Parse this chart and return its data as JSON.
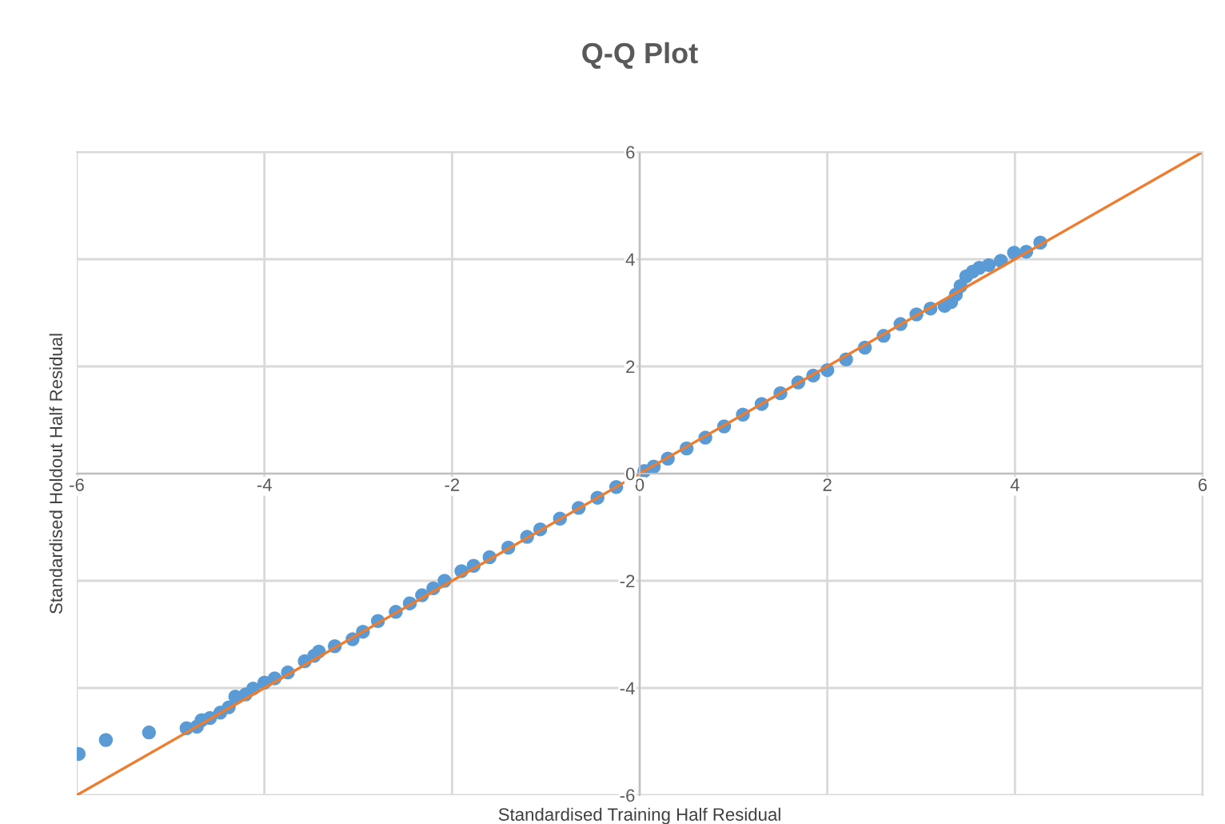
{
  "chart_data": {
    "type": "scatter",
    "title": "Q-Q Plot",
    "xlabel": "Standardised Training Half Residual",
    "ylabel": "Standardised Holdout Half Residual",
    "xlim": [
      -6,
      6
    ],
    "ylim": [
      -6,
      6
    ],
    "xticks": [
      -6,
      -4,
      -2,
      0,
      2,
      4,
      6
    ],
    "yticks": [
      -6,
      -4,
      -2,
      0,
      2,
      4,
      6
    ],
    "grid": true,
    "series": [
      {
        "type": "scatter",
        "color": "#5b9bd5",
        "marker": "circle",
        "x": [
          -5.98,
          -5.69,
          -5.23,
          -4.83,
          -4.72,
          -4.67,
          -4.58,
          -4.47,
          -4.38,
          -4.31,
          -4.2,
          -4.12,
          -4.0,
          -3.89,
          -3.75,
          -3.57,
          -3.47,
          -3.42,
          -3.25,
          -3.06,
          -2.95,
          -2.79,
          -2.6,
          -2.45,
          -2.32,
          -2.2,
          -2.08,
          -1.9,
          -1.77,
          -1.6,
          -1.4,
          -1.2,
          -1.06,
          -0.85,
          -0.65,
          -0.45,
          -0.25,
          0.05,
          0.15,
          0.3,
          0.5,
          0.7,
          0.9,
          1.1,
          1.3,
          1.5,
          1.69,
          1.85,
          2.0,
          2.2,
          2.4,
          2.6,
          2.78,
          2.95,
          3.1,
          3.25,
          3.32,
          3.37,
          3.42,
          3.48,
          3.55,
          3.62,
          3.72,
          3.85,
          3.99,
          4.12,
          4.27
        ],
        "values": [
          -5.23,
          -4.97,
          -4.83,
          -4.75,
          -4.72,
          -4.6,
          -4.56,
          -4.46,
          -4.36,
          -4.16,
          -4.12,
          -4.01,
          -3.9,
          -3.82,
          -3.71,
          -3.5,
          -3.4,
          -3.32,
          -3.22,
          -3.09,
          -2.95,
          -2.75,
          -2.58,
          -2.42,
          -2.27,
          -2.14,
          -2.0,
          -1.82,
          -1.72,
          -1.56,
          -1.38,
          -1.18,
          -1.04,
          -0.84,
          -0.64,
          -0.45,
          -0.25,
          0.05,
          0.13,
          0.28,
          0.47,
          0.67,
          0.88,
          1.1,
          1.3,
          1.5,
          1.7,
          1.83,
          1.93,
          2.13,
          2.35,
          2.57,
          2.79,
          2.97,
          3.08,
          3.13,
          3.2,
          3.34,
          3.5,
          3.68,
          3.77,
          3.84,
          3.89,
          3.97,
          4.12,
          4.14,
          4.31
        ]
      },
      {
        "type": "line",
        "color": "#ed7d31",
        "marker": "none",
        "x": [
          -6,
          6
        ],
        "values": [
          -6,
          6
        ]
      }
    ]
  }
}
